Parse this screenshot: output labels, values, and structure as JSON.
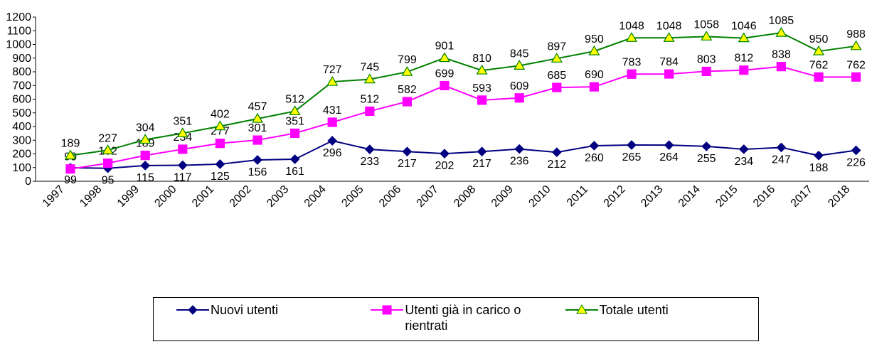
{
  "chart_data": {
    "type": "line",
    "categories": [
      "1997",
      "1998",
      "1999",
      "2000",
      "2001",
      "2002",
      "2003",
      "2004",
      "2005",
      "2006",
      "2007",
      "2008",
      "2009",
      "2010",
      "2011",
      "2012",
      "2013",
      "2014",
      "2015",
      "2016",
      "2017",
      "2018"
    ],
    "series": [
      {
        "name": "Nuovi utenti",
        "color": "#000080",
        "marker": "diamond",
        "marker_fill": "#000080",
        "label_position": "below",
        "values": [
          99,
          95,
          115,
          117,
          125,
          156,
          161,
          296,
          233,
          217,
          202,
          217,
          236,
          212,
          260,
          265,
          264,
          255,
          234,
          247,
          188,
          226
        ]
      },
      {
        "name": "Utenti già in carico o rientrati",
        "color": "#ff00ff",
        "marker": "square",
        "marker_fill": "#ff00ff",
        "label_position": "above",
        "values": [
          90,
          132,
          189,
          234,
          277,
          301,
          351,
          431,
          512,
          582,
          699,
          593,
          609,
          685,
          690,
          783,
          784,
          803,
          812,
          838,
          762,
          762
        ]
      },
      {
        "name": "Totale utenti",
        "color": "#008000",
        "marker": "triangle",
        "marker_fill": "#ffff00",
        "label_position": "above",
        "values": [
          189,
          227,
          304,
          351,
          402,
          457,
          512,
          727,
          745,
          799,
          901,
          810,
          845,
          897,
          950,
          1048,
          1048,
          1058,
          1046,
          1085,
          950,
          988
        ]
      }
    ],
    "ylim": [
      0,
      1200
    ],
    "yticks": [
      0,
      100,
      200,
      300,
      400,
      500,
      600,
      700,
      800,
      900,
      1000,
      1100,
      1200
    ],
    "legend": "bottom"
  }
}
